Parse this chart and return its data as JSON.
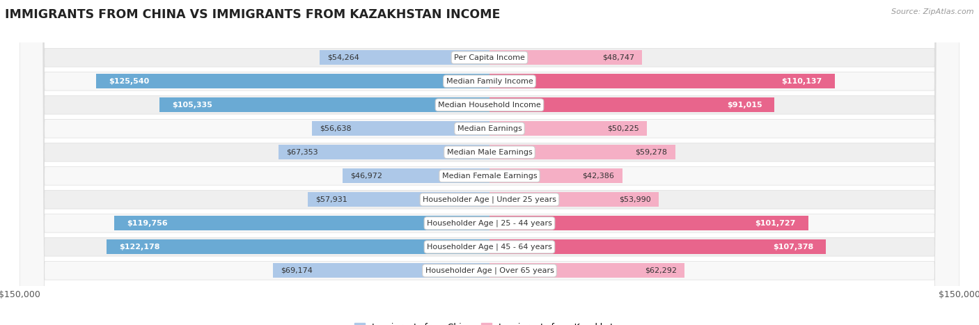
{
  "title": "IMMIGRANTS FROM CHINA VS IMMIGRANTS FROM KAZAKHSTAN INCOME",
  "source": "Source: ZipAtlas.com",
  "categories": [
    "Per Capita Income",
    "Median Family Income",
    "Median Household Income",
    "Median Earnings",
    "Median Male Earnings",
    "Median Female Earnings",
    "Householder Age | Under 25 years",
    "Householder Age | 25 - 44 years",
    "Householder Age | 45 - 64 years",
    "Householder Age | Over 65 years"
  ],
  "china_values": [
    54264,
    125540,
    105335,
    56638,
    67353,
    46972,
    57931,
    119756,
    122178,
    69174
  ],
  "kazakhstan_values": [
    48747,
    110137,
    91015,
    50225,
    59278,
    42386,
    53990,
    101727,
    107378,
    62292
  ],
  "china_labels": [
    "$54,264",
    "$125,540",
    "$105,335",
    "$56,638",
    "$67,353",
    "$46,972",
    "$57,931",
    "$119,756",
    "$122,178",
    "$69,174"
  ],
  "kazakhstan_labels": [
    "$48,747",
    "$110,137",
    "$91,015",
    "$50,225",
    "$59,278",
    "$42,386",
    "$53,990",
    "$101,727",
    "$107,378",
    "$62,292"
  ],
  "china_color_light": "#adc8e8",
  "china_color_dark": "#6aaad4",
  "kazakhstan_color_light": "#f5afc5",
  "kazakhstan_color_dark": "#e8658c",
  "max_value": 150000,
  "background_color": "#ffffff",
  "row_bg_odd": "#efefef",
  "row_bg_even": "#f8f8f8",
  "title_fontsize": 12.5,
  "label_fontsize": 8,
  "bar_label_fontsize": 8,
  "legend_fontsize": 9,
  "source_fontsize": 8,
  "china_large": [
    false,
    true,
    true,
    false,
    false,
    false,
    false,
    true,
    true,
    false
  ],
  "kaz_large": [
    false,
    true,
    true,
    false,
    false,
    false,
    false,
    true,
    true,
    false
  ]
}
